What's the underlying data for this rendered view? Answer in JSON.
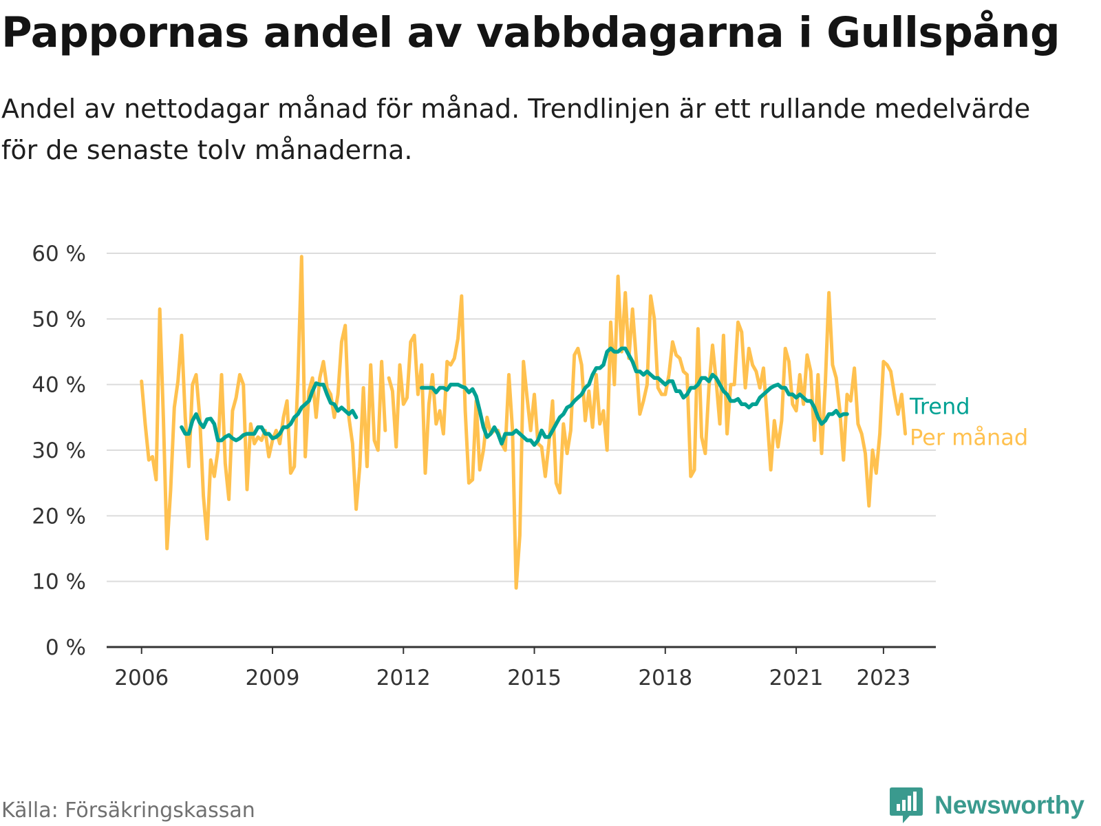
{
  "title": "Pappornas andel av vabbdagarna i Gullspång",
  "subtitle": "Andel av nettodagar månad för månad. Trendlinjen är ett rullande medelvärde för de senaste tolv månaderna.",
  "source": "Källa: Försäkringskassan",
  "brand": {
    "name": "Newsworthy",
    "icon": "newsworthy-logo-icon",
    "color": "#3a9a8e"
  },
  "chart_data": {
    "type": "line",
    "x_axis": {
      "type": "time",
      "tick_labels": [
        "2006",
        "2009",
        "2012",
        "2015",
        "2018",
        "2021",
        "2023"
      ],
      "tick_values": [
        2006,
        2009,
        2012,
        2015,
        2018,
        2021,
        2023
      ],
      "range": [
        2005.2,
        2024.2
      ]
    },
    "y_axis": {
      "range": [
        0,
        60
      ],
      "ticks": [
        0,
        10,
        20,
        30,
        40,
        50,
        60
      ],
      "tick_labels": [
        "0 %",
        "10 %",
        "20 %",
        "30 %",
        "40 %",
        "50 %",
        "60 %"
      ],
      "unit": "%"
    },
    "grid": "horizontal",
    "legend": "right, at line ends",
    "series": [
      {
        "name": "Per månad",
        "color": "#ffc14f",
        "segments": [
          {
            "start": "2006-01",
            "values": [
              40.5,
              34,
              28.5,
              29,
              25.5,
              51.5,
              35,
              15,
              24,
              36.5,
              40.5,
              47.5,
              35,
              27.5,
              40,
              41.5,
              35,
              23,
              16.5,
              28.5,
              26,
              30,
              41.5,
              28,
              22.5,
              36,
              38,
              41.5,
              40,
              24,
              34,
              31,
              32,
              31.5,
              33,
              29,
              31.5,
              33,
              31,
              35,
              37.5,
              26.5,
              27.5,
              41,
              59.5,
              29,
              39,
              41,
              35,
              41,
              43.5,
              39.5,
              38.5,
              35,
              38.5,
              46.5,
              49,
              35,
              31,
              21,
              27.5,
              39.5,
              27.5,
              43,
              31.5,
              30,
              43.5,
              33
            ]
          },
          {
            "start": "2011-09",
            "values": [
              41,
              39,
              30.5,
              43,
              37,
              38,
              46.5,
              47.5,
              38.5,
              43,
              26.5,
              37,
              41.5,
              34,
              36,
              32.5,
              43.5,
              43,
              44,
              47,
              53.5,
              36,
              25,
              25.5,
              37.5,
              27,
              30,
              35,
              32.5,
              33,
              33,
              31,
              30,
              41.5,
              33,
              9,
              17,
              43.5,
              38,
              33,
              38.5,
              31,
              30.5,
              26,
              31,
              37.5,
              25,
              23.5,
              34,
              29.5,
              33,
              44.5,
              45.5,
              43,
              34.5,
              39,
              33.5,
              41.5,
              34,
              36,
              30,
              49.5,
              40,
              56.5,
              45,
              54,
              44,
              51.5,
              44,
              35.5,
              37.5,
              40,
              53.5,
              50,
              39.5,
              38.5,
              38.5,
              41.5,
              46.5,
              44.5,
              44,
              42,
              41.5,
              26,
              27,
              48.5,
              32,
              29.5,
              39.5,
              46,
              40.5,
              34,
              47.5,
              32.5,
              40,
              40,
              49.5,
              48,
              39.5,
              45.5,
              43,
              42,
              39.5,
              42.5,
              35,
              27,
              34.5,
              30.5,
              34.5,
              45.5,
              43.5,
              37,
              36,
              41.5,
              37,
              44.5,
              42,
              31.5,
              41.5,
              29.5,
              40,
              54,
              43,
              41,
              36,
              28.5,
              38.5,
              37.5,
              42.5,
              34,
              32.5,
              29.5,
              21.5,
              30,
              26.5,
              32.5,
              43.5,
              43,
              42,
              38.5,
              35.5,
              38.5,
              32.5
            ]
          }
        ]
      },
      {
        "name": "Trend",
        "color": "#00a193",
        "segments": [
          {
            "start": "2006-12",
            "values": [
              33.5,
              32.5,
              32.5,
              34.5,
              35.5,
              34.2,
              33.5,
              34.7,
              34.8,
              34,
              31.5,
              31.5,
              32,
              32.3,
              31.8,
              31.5,
              31.8,
              32.3,
              32.5,
              32.5,
              32.5,
              33.5,
              33.5,
              32.5,
              32.5,
              31.8,
              32,
              32.5,
              33.5,
              33.5,
              34,
              35,
              35.5,
              36.5,
              37,
              37.5,
              39,
              40.2,
              40,
              40,
              38.5,
              37.2,
              37,
              36,
              36.5,
              36,
              35.5,
              36,
              35
            ]
          },
          {
            "start": "2012-06",
            "values": [
              39.5,
              39.5,
              39.5,
              39.5,
              38.8,
              39.5,
              39.5,
              39.2,
              40,
              40,
              40,
              39.7,
              39.5,
              38.8,
              39.3,
              38.2,
              36,
              33.5,
              32,
              32.5,
              33.5,
              32.5,
              31,
              32.5,
              32.5,
              32.5,
              33,
              32.5,
              32,
              31.5,
              31.5,
              30.8,
              31.5,
              33,
              32,
              32,
              33,
              34,
              35,
              35.5,
              36.5,
              36.8,
              37.5,
              38,
              38.5,
              39.5,
              40,
              41.5,
              42.5,
              42.5,
              43,
              45,
              45.5,
              45,
              45,
              45.5,
              45.5,
              44.5,
              43.5,
              42,
              42,
              41.5,
              42,
              41.5,
              41,
              41,
              40.5,
              40,
              40.5,
              40.5,
              39,
              39,
              38,
              38.5,
              39.5,
              39.5,
              40,
              41,
              41,
              40.5,
              41.5,
              41,
              40,
              39,
              38.5,
              37.5,
              37.5,
              37.8,
              37,
              37,
              36.5,
              37,
              37,
              38,
              38.5,
              39,
              39.5,
              39.8,
              40,
              39.5,
              39.5,
              38.5,
              38.5,
              38,
              38.5,
              38,
              37.5,
              37.5,
              36.5,
              35,
              34,
              34.5,
              35.5,
              35.5,
              36,
              35.2,
              35.5,
              35.5
            ]
          }
        ]
      }
    ]
  }
}
